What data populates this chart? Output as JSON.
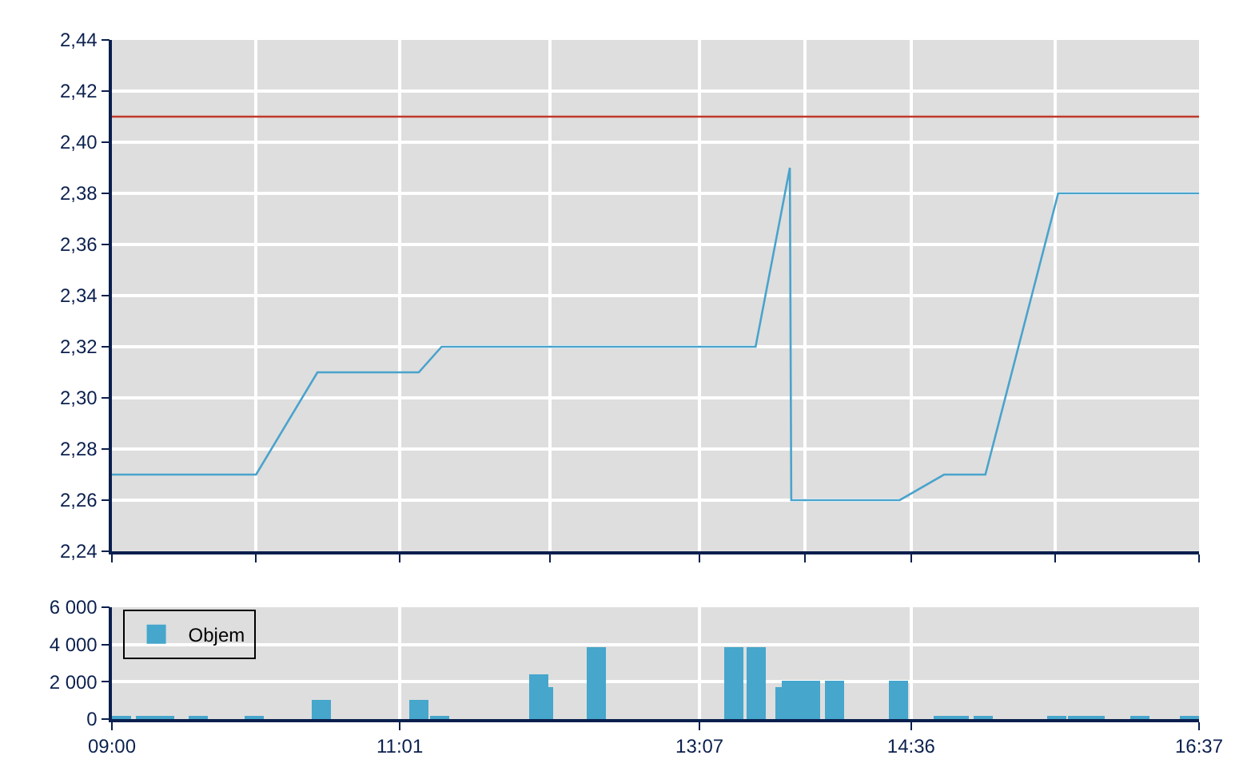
{
  "chart_data": [
    {
      "type": "line",
      "x": [
        9,
        10.01,
        10.44,
        11.15,
        11.31,
        13.51,
        13.75,
        13.76,
        14.52,
        14.83,
        15.12,
        15.63,
        16.617
      ],
      "series": [
        {
          "color": "#4aa3cc",
          "values": [
            2.27,
            2.27,
            2.31,
            2.31,
            2.32,
            2.32,
            2.39,
            2.26,
            2.26,
            2.27,
            2.27,
            2.38,
            2.38
          ]
        }
      ],
      "xlim": [
        9,
        16.617
      ],
      "xticks": [
        {
          "value": 9,
          "label": null
        },
        {
          "value": 10.008,
          "label": null
        },
        {
          "value": 11.017,
          "label": null
        },
        {
          "value": 12.067,
          "label": null
        },
        {
          "value": 13.117,
          "label": null
        },
        {
          "value": 13.858,
          "label": null
        },
        {
          "value": 14.6,
          "label": null
        },
        {
          "value": 15.608,
          "label": null
        },
        {
          "value": 16.617,
          "label": null
        }
      ],
      "ylim": [
        2.24,
        2.44
      ],
      "yticks": [
        {
          "value": 2.24,
          "label": "2,24"
        },
        {
          "value": 2.26,
          "label": "2,26"
        },
        {
          "value": 2.28,
          "label": "2,28"
        },
        {
          "value": 2.3,
          "label": "2,30"
        },
        {
          "value": 2.32,
          "label": "2,32"
        },
        {
          "value": 2.34,
          "label": "2,34"
        },
        {
          "value": 2.36,
          "label": "2,36"
        },
        {
          "value": 2.38,
          "label": "2,38"
        },
        {
          "value": 2.4,
          "label": "2,40"
        },
        {
          "value": 2.42,
          "label": "2,42"
        },
        {
          "value": 2.44,
          "label": "2,44"
        }
      ],
      "ref_lines": [
        {
          "axis": "y",
          "value": 2.41,
          "color": "#c0392b"
        }
      ],
      "grid": true,
      "tick_labels": "y"
    },
    {
      "type": "bar",
      "x": [
        9.07,
        9.23,
        9.37,
        9.61,
        10.0,
        10.47,
        11.15,
        11.3,
        11.99,
        12.02,
        12.39,
        13.36,
        13.51,
        13.71,
        13.76,
        13.9,
        14.06,
        14.51,
        14.83,
        14.94,
        15.1,
        15.62,
        15.76,
        15.89,
        16.2,
        16.55
      ],
      "series": [
        {
          "name": "Objem",
          "color": "#46a6cc",
          "values": [
            100,
            100,
            100,
            100,
            100,
            1000,
            1000,
            100,
            2400,
            1700,
            3900,
            3900,
            3900,
            1700,
            2100,
            2100,
            2100,
            2100,
            100,
            100,
            100,
            200,
            200,
            200,
            200,
            200
          ]
        }
      ],
      "xlim": [
        9,
        16.617
      ],
      "xticks": [
        {
          "value": 9,
          "label": "09:00"
        },
        {
          "value": 11.017,
          "label": "11:01"
        },
        {
          "value": 13.117,
          "label": "13:07"
        },
        {
          "value": 14.6,
          "label": "14:36"
        },
        {
          "value": 16.617,
          "label": "16:37"
        }
      ],
      "ylim": [
        0,
        6000
      ],
      "yticks": [
        {
          "value": 0,
          "label": "0"
        },
        {
          "value": 2000,
          "label": "2 000"
        },
        {
          "value": 4000,
          "label": "4 000"
        },
        {
          "value": 6000,
          "label": "6 000"
        }
      ],
      "grid": true,
      "legend": "top left"
    }
  ]
}
